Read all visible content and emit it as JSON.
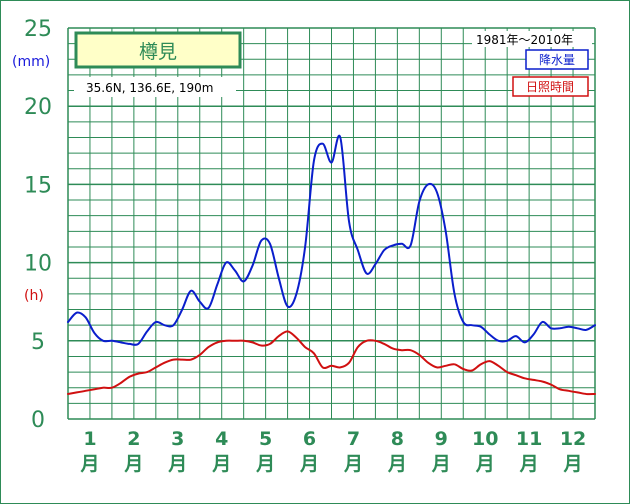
{
  "chart_data": {
    "type": "line",
    "title": "樽見",
    "location": "35.6N,  136.6E,  190m",
    "period": "1981年〜2010年",
    "y_unit_primary": "(mm)",
    "y_unit_secondary": "(h)",
    "ylim": [
      0,
      25
    ],
    "yticks": [
      "0",
      "5",
      "10",
      "15",
      "20",
      "25"
    ],
    "months": [
      "1",
      "2",
      "3",
      "4",
      "5",
      "6",
      "7",
      "8",
      "9",
      "10",
      "11",
      "12"
    ],
    "month_suffix": "月",
    "series": [
      {
        "name": "降水量",
        "color": "#0a1ecc",
        "x": [
          0.5,
          0.7,
          0.9,
          1.1,
          1.3,
          1.5,
          1.7,
          1.9,
          2.1,
          2.3,
          2.5,
          2.7,
          2.9,
          3.1,
          3.3,
          3.5,
          3.7,
          3.9,
          4.1,
          4.3,
          4.5,
          4.7,
          4.9,
          5.1,
          5.3,
          5.5,
          5.7,
          5.9,
          6.1,
          6.3,
          6.5,
          6.7,
          6.9,
          7.1,
          7.3,
          7.5,
          7.7,
          7.9,
          8.1,
          8.3,
          8.5,
          8.7,
          8.9,
          9.1,
          9.3,
          9.5,
          9.7,
          9.9,
          10.1,
          10.3,
          10.5,
          10.7,
          10.9,
          11.1,
          11.3,
          11.5,
          11.7,
          11.9,
          12.1,
          12.3,
          12.5
        ],
        "values": [
          6.2,
          6.8,
          6.5,
          5.5,
          5.0,
          5.0,
          4.9,
          4.8,
          4.8,
          5.6,
          6.2,
          6.0,
          6.0,
          7.0,
          8.2,
          7.5,
          7.1,
          8.6,
          10.0,
          9.5,
          8.8,
          9.8,
          11.4,
          11.2,
          9.0,
          7.2,
          8.0,
          11.0,
          16.5,
          17.6,
          16.4,
          18.0,
          12.6,
          10.8,
          9.3,
          9.9,
          10.8,
          11.1,
          11.2,
          11.1,
          13.9,
          15.0,
          14.5,
          12.0,
          8.0,
          6.2,
          6.0,
          5.9,
          5.4,
          5.0,
          5.0,
          5.3,
          4.9,
          5.4,
          6.2,
          5.8,
          5.8,
          5.9,
          5.8,
          5.7,
          6.0
        ]
      },
      {
        "name": "日照時間",
        "color": "#d01010",
        "x": [
          0.5,
          0.7,
          0.9,
          1.1,
          1.3,
          1.5,
          1.7,
          1.9,
          2.1,
          2.3,
          2.5,
          2.7,
          2.9,
          3.1,
          3.3,
          3.5,
          3.7,
          3.9,
          4.1,
          4.3,
          4.5,
          4.7,
          4.9,
          5.1,
          5.3,
          5.5,
          5.7,
          5.9,
          6.1,
          6.3,
          6.5,
          6.7,
          6.9,
          7.1,
          7.3,
          7.5,
          7.7,
          7.9,
          8.1,
          8.3,
          8.5,
          8.7,
          8.9,
          9.1,
          9.3,
          9.5,
          9.7,
          9.9,
          10.1,
          10.3,
          10.5,
          10.7,
          10.9,
          11.1,
          11.3,
          11.5,
          11.7,
          11.9,
          12.1,
          12.3,
          12.5
        ],
        "values": [
          1.6,
          1.7,
          1.8,
          1.9,
          2.0,
          2.0,
          2.3,
          2.7,
          2.9,
          3.0,
          3.3,
          3.6,
          3.8,
          3.8,
          3.8,
          4.1,
          4.6,
          4.9,
          5.0,
          5.0,
          5.0,
          4.9,
          4.7,
          4.8,
          5.3,
          5.6,
          5.2,
          4.6,
          4.2,
          3.3,
          3.4,
          3.3,
          3.6,
          4.6,
          5.0,
          5.0,
          4.8,
          4.5,
          4.4,
          4.4,
          4.1,
          3.6,
          3.3,
          3.4,
          3.5,
          3.2,
          3.1,
          3.5,
          3.7,
          3.4,
          3.0,
          2.8,
          2.6,
          2.5,
          2.4,
          2.2,
          1.9,
          1.8,
          1.7,
          1.6,
          1.6
        ]
      }
    ]
  }
}
